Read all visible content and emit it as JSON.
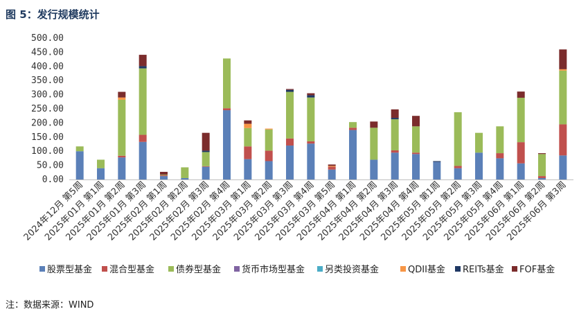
{
  "title": "图 5：发行规模统计",
  "source": "注：数据来源：WIND",
  "colors": {
    "股票型基金": "#5b80b8",
    "混合型基金": "#c0504d",
    "债券型基金": "#9bbb59",
    "货币市场型基金": "#8064a2",
    "另类投资基金": "#4bacc6",
    "QDII基金": "#f79646",
    "REITs基金": "#1f3864",
    "FOF基金": "#7b2c2c"
  },
  "chart_data": {
    "type": "bar",
    "stacked": true,
    "ylim": [
      0,
      500
    ],
    "ytick_labels": [
      "0.00",
      "50.00",
      "100.00",
      "150.00",
      "200.00",
      "250.00",
      "300.00",
      "350.00",
      "400.00",
      "450.00",
      "500.00"
    ],
    "legend_position": "bottom",
    "categories": [
      "2024年12月 第5周",
      "2025年01月 第1周",
      "2025年01月 第2周",
      "2025年01月 第3周",
      "2025年02月 第1周",
      "2025年02月 第2周",
      "2025年02月 第3周",
      "2025年02月 第4周",
      "2025年03月 第1周",
      "2025年03月 第2周",
      "2025年03月 第3周",
      "2025年03月 第4周",
      "2025年03月 第5周",
      "2025年04月 第1周",
      "2025年04月 第2周",
      "2025年04月 第3周",
      "2025年04月 第4周",
      "2025年05月 第1周",
      "2025年05月 第2周",
      "2025年05月 第3周",
      "2025年05月 第4周",
      "2025年06月 第1周",
      "2025年06月 第2周",
      "2025年06月 第3周"
    ],
    "series": [
      {
        "name": "股票型基金",
        "values": [
          100,
          40,
          78,
          133,
          12,
          5,
          45,
          245,
          72,
          65,
          120,
          127,
          35,
          175,
          70,
          95,
          90,
          62,
          40,
          95,
          75,
          57,
          5,
          85
        ]
      },
      {
        "name": "混合型基金",
        "values": [
          0,
          0,
          6,
          25,
          3,
          0,
          2,
          7,
          45,
          37,
          25,
          8,
          10,
          8,
          0,
          8,
          5,
          0,
          8,
          0,
          18,
          75,
          7,
          110
        ]
      },
      {
        "name": "债券型基金",
        "values": [
          17,
          30,
          198,
          235,
          2,
          38,
          50,
          176,
          65,
          75,
          165,
          155,
          0,
          20,
          113,
          110,
          93,
          0,
          190,
          70,
          95,
          157,
          78,
          190
        ]
      },
      {
        "name": "货币市场型基金",
        "values": [
          0,
          0,
          0,
          0,
          0,
          0,
          0,
          0,
          0,
          0,
          0,
          0,
          0,
          0,
          0,
          0,
          0,
          0,
          0,
          0,
          0,
          0,
          0,
          0
        ]
      },
      {
        "name": "另类投资基金",
        "values": [
          0,
          0,
          0,
          0,
          0,
          0,
          0,
          0,
          0,
          0,
          0,
          0,
          0,
          0,
          0,
          0,
          0,
          0,
          0,
          0,
          0,
          0,
          0,
          0
        ]
      },
      {
        "name": "QDII基金",
        "values": [
          0,
          0,
          8,
          0,
          0,
          0,
          0,
          0,
          15,
          3,
          0,
          0,
          3,
          0,
          0,
          0,
          0,
          0,
          0,
          0,
          0,
          0,
          0,
          5
        ]
      },
      {
        "name": "REITs基金",
        "values": [
          0,
          0,
          0,
          8,
          0,
          0,
          5,
          0,
          0,
          0,
          7,
          8,
          0,
          0,
          0,
          5,
          0,
          3,
          0,
          0,
          0,
          0,
          0,
          0
        ]
      },
      {
        "name": "FOF基金",
        "values": [
          0,
          0,
          20,
          40,
          10,
          0,
          63,
          0,
          12,
          0,
          3,
          7,
          5,
          0,
          22,
          30,
          37,
          0,
          0,
          0,
          0,
          22,
          3,
          70
        ]
      }
    ]
  }
}
